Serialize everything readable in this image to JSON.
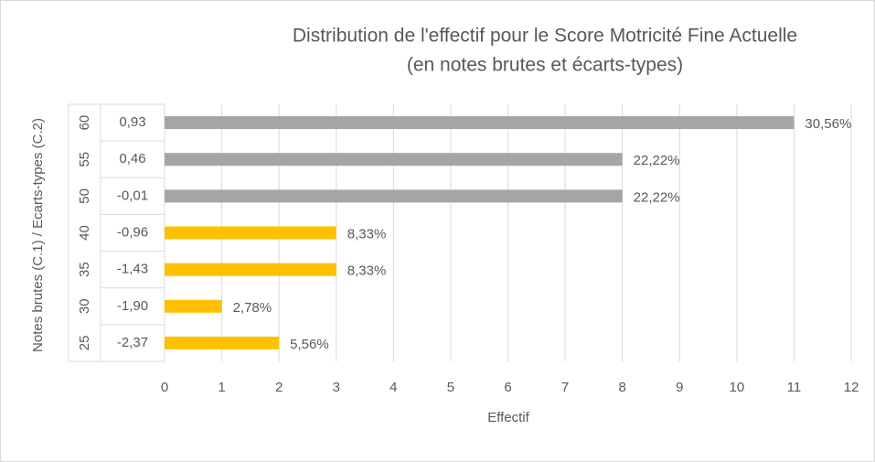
{
  "chart_data": {
    "type": "hbar",
    "title": "Distribution de l'effectif pour le Score Motricité Fine Actuelle",
    "subtitle": "(en notes brutes et écarts-types)",
    "ylabel": "Notes brutes (C.1) / Ecarts-types (C.2)",
    "xlabel": "Effectif",
    "categories": [
      "60",
      "55",
      "50",
      "40",
      "35",
      "30",
      "25"
    ],
    "sub_categories": [
      "0,93",
      "0,46",
      "-0,01",
      "-0,96",
      "-1,43",
      "-1,90",
      "-2,37"
    ],
    "values": [
      11,
      8,
      8,
      3,
      3,
      1,
      2
    ],
    "percent_labels": [
      "30,56%",
      "22,22%",
      "22,22%",
      "8,33%",
      "8,33%",
      "2,78%",
      "5,56%"
    ],
    "colors": [
      "#a5a5a5",
      "#a5a5a5",
      "#a5a5a5",
      "#ffc000",
      "#ffc000",
      "#ffc000",
      "#ffc000"
    ],
    "xlim": [
      0,
      12
    ],
    "xticks": [
      0,
      1,
      2,
      3,
      4,
      5,
      6,
      7,
      8,
      9,
      10,
      11,
      12
    ],
    "grid": true
  }
}
